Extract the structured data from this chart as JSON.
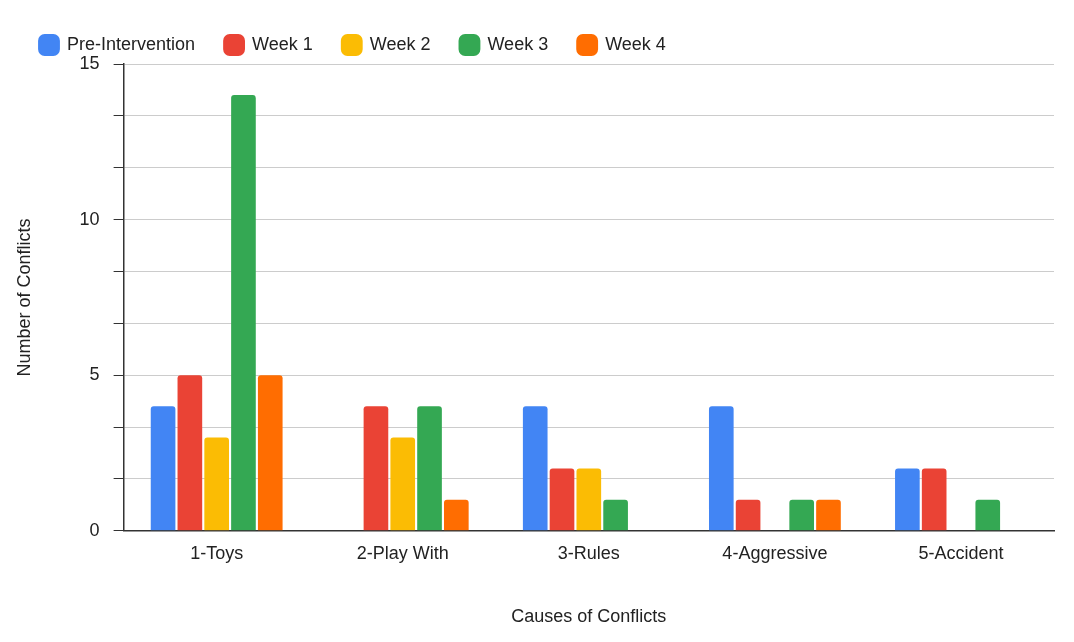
{
  "chart_data": {
    "type": "bar",
    "xlabel": "Causes of Conflicts",
    "ylabel": "Number of Conflicts",
    "categories": [
      "1-Toys",
      "2-Play With",
      "3-Rules",
      "4-Aggressive",
      "5-Accident"
    ],
    "series": [
      {
        "name": "Pre-Intervention",
        "color": "#4285f4",
        "values": [
          4,
          0,
          4,
          4,
          2
        ]
      },
      {
        "name": "Week 1",
        "color": "#ea4335",
        "values": [
          5,
          4,
          2,
          1,
          2
        ]
      },
      {
        "name": "Week 2",
        "color": "#fbbc04",
        "values": [
          3,
          3,
          2,
          0,
          0
        ]
      },
      {
        "name": "Week 3",
        "color": "#34a853",
        "values": [
          14,
          4,
          1,
          1,
          1
        ]
      },
      {
        "name": "Week 4",
        "color": "#ff6d01",
        "values": [
          5,
          1,
          0,
          1,
          0
        ]
      }
    ],
    "ylim": [
      0,
      15
    ],
    "yticks": [
      0,
      {
        "value": 1.667,
        "label": null
      },
      {
        "value": 3.333,
        "label": null
      },
      5,
      {
        "value": 6.667,
        "label": null
      },
      {
        "value": 8.333,
        "label": null
      },
      10,
      {
        "value": 11.667,
        "label": null
      },
      {
        "value": 13.333,
        "label": null
      },
      15
    ],
    "grid": "y",
    "legend": "top"
  }
}
